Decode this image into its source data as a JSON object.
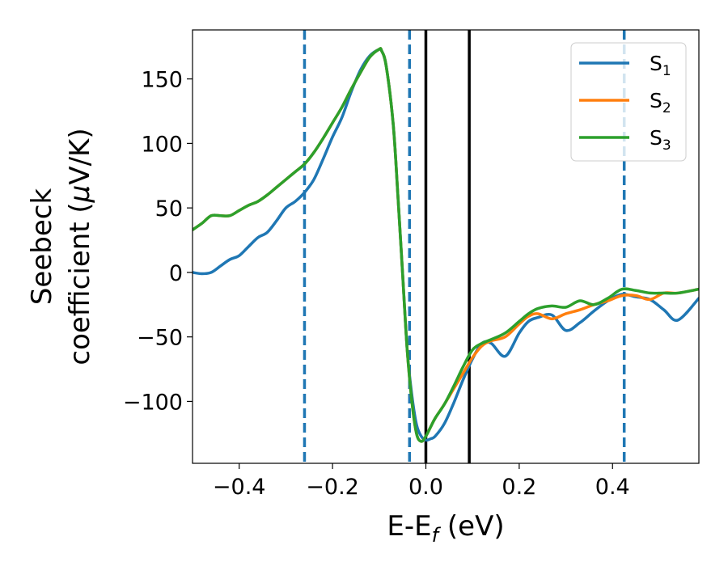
{
  "chart_data": {
    "type": "line",
    "xlabel": {
      "main": "E-E",
      "sub": "f",
      "tail": " (eV)"
    },
    "ylabel": {
      "line1": "Seebeck",
      "line2_pre": "coefficient  (",
      "line2_mu": "μ",
      "line2_post": "V/K)"
    },
    "xlim": [
      -0.5,
      0.585
    ],
    "ylim": [
      -148,
      188
    ],
    "xticks": [
      -0.4,
      -0.2,
      0.0,
      0.2,
      0.4
    ],
    "xtick_labels": [
      "−0.4",
      "−0.2",
      "0.0",
      "0.2",
      "0.4"
    ],
    "yticks": [
      150,
      100,
      50,
      0,
      -50,
      -100
    ],
    "ytick_labels": [
      "150",
      "100",
      "50",
      "0",
      "−50",
      "−100"
    ],
    "vlines_dashed": [
      -0.26,
      -0.035,
      0.425
    ],
    "vlines_solid": [
      0.0,
      0.093
    ],
    "legend_position": "upper right",
    "series": [
      {
        "name": "S",
        "subscript": "1",
        "color": "#1f77b4",
        "x": [
          -0.5,
          -0.48,
          -0.46,
          -0.44,
          -0.42,
          -0.4,
          -0.38,
          -0.36,
          -0.34,
          -0.32,
          -0.3,
          -0.28,
          -0.26,
          -0.24,
          -0.22,
          -0.2,
          -0.18,
          -0.16,
          -0.14,
          -0.12,
          -0.1,
          -0.095,
          -0.085,
          -0.07,
          -0.06,
          -0.05,
          -0.04,
          -0.03,
          -0.02,
          -0.01,
          0.0,
          0.01,
          0.02,
          0.04,
          0.06,
          0.08,
          0.1,
          0.12,
          0.14,
          0.17,
          0.2,
          0.22,
          0.24,
          0.27,
          0.3,
          0.33,
          0.36,
          0.39,
          0.42,
          0.45,
          0.48,
          0.51,
          0.54,
          0.585
        ],
        "y": [
          0,
          -1,
          0,
          5,
          10,
          13,
          20,
          27,
          31,
          40,
          50,
          55,
          62,
          72,
          88,
          105,
          120,
          140,
          157,
          168,
          173,
          172,
          160,
          115,
          60,
          0,
          -60,
          -95,
          -118,
          -127,
          -130,
          -129,
          -127,
          -117,
          -101,
          -83,
          -67,
          -55,
          -55,
          -65,
          -47,
          -38,
          -35,
          -33,
          -45,
          -39,
          -30,
          -22,
          -17,
          -19,
          -21,
          -29,
          -37,
          -20
        ]
      },
      {
        "name": "S",
        "subscript": "2",
        "color": "#ff7f0e",
        "x": [
          -0.5,
          -0.48,
          -0.46,
          -0.44,
          -0.42,
          -0.4,
          -0.38,
          -0.36,
          -0.34,
          -0.32,
          -0.3,
          -0.28,
          -0.26,
          -0.24,
          -0.22,
          -0.2,
          -0.18,
          -0.16,
          -0.14,
          -0.12,
          -0.1,
          -0.095,
          -0.085,
          -0.07,
          -0.06,
          -0.05,
          -0.04,
          -0.03,
          -0.02,
          -0.01,
          0.0,
          0.01,
          0.02,
          0.04,
          0.06,
          0.08,
          0.1,
          0.12,
          0.14,
          0.17,
          0.2,
          0.22,
          0.24,
          0.27,
          0.3,
          0.33,
          0.36,
          0.39,
          0.42,
          0.45,
          0.48,
          0.51,
          0.54,
          0.585
        ],
        "y": [
          33,
          38,
          44,
          44,
          44,
          48,
          52,
          55,
          60,
          66,
          72,
          78,
          84,
          93,
          104,
          116,
          128,
          142,
          155,
          167,
          173,
          172,
          160,
          115,
          60,
          0,
          -60,
          -100,
          -125,
          -131,
          -127,
          -120,
          -113,
          -102,
          -90,
          -78,
          -66,
          -57,
          -53,
          -50,
          -40,
          -34,
          -32,
          -36,
          -32,
          -29,
          -25,
          -22,
          -18,
          -18,
          -21,
          -16,
          -16,
          -13
        ]
      },
      {
        "name": "S",
        "subscript": "3",
        "color": "#2ca02c",
        "x": [
          -0.5,
          -0.48,
          -0.46,
          -0.44,
          -0.42,
          -0.4,
          -0.38,
          -0.36,
          -0.34,
          -0.32,
          -0.3,
          -0.28,
          -0.26,
          -0.24,
          -0.22,
          -0.2,
          -0.18,
          -0.16,
          -0.14,
          -0.12,
          -0.1,
          -0.095,
          -0.085,
          -0.07,
          -0.06,
          -0.05,
          -0.04,
          -0.03,
          -0.02,
          -0.01,
          0.0,
          0.01,
          0.02,
          0.04,
          0.06,
          0.08,
          0.1,
          0.12,
          0.14,
          0.17,
          0.2,
          0.22,
          0.24,
          0.27,
          0.3,
          0.33,
          0.36,
          0.39,
          0.42,
          0.45,
          0.48,
          0.51,
          0.54,
          0.585
        ],
        "y": [
          33,
          38,
          44,
          44,
          44,
          48,
          52,
          55,
          60,
          66,
          72,
          78,
          84,
          93,
          104,
          116,
          128,
          142,
          155,
          167,
          173,
          172,
          160,
          115,
          60,
          0,
          -60,
          -100,
          -125,
          -131,
          -127,
          -120,
          -113,
          -102,
          -88,
          -73,
          -60,
          -55,
          -52,
          -47,
          -38,
          -32,
          -28,
          -26,
          -27,
          -22,
          -25,
          -20,
          -13,
          -14,
          -16,
          -16,
          -16,
          -13
        ]
      }
    ]
  }
}
